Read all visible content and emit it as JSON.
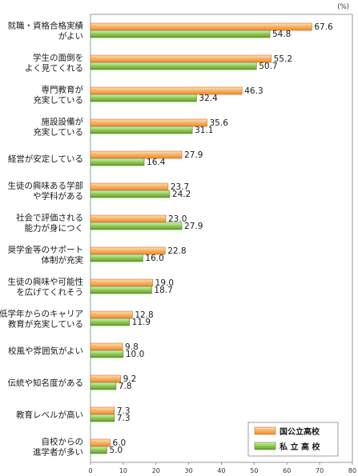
{
  "chart_data": {
    "type": "bar",
    "orientation": "horizontal",
    "unit": "(%)",
    "categories": [
      [
        "就職・資格合格実績",
        "がよい"
      ],
      [
        "学生の面倒を",
        "よく見てくれる"
      ],
      [
        "専門教育が",
        "充実している"
      ],
      [
        "施設設備が",
        "充実している"
      ],
      [
        "経営が安定している"
      ],
      [
        "生徒の興味ある学部",
        "や学科がある"
      ],
      [
        "社会で評価される",
        "能力が身につく"
      ],
      [
        "奨学金等のサポート",
        "体制が充実"
      ],
      [
        "生徒の興味や可能性",
        "を広げてくれそう"
      ],
      [
        "低学年からのキャリア",
        "教育が充実している"
      ],
      [
        "校風や雰囲気がよい"
      ],
      [
        "伝統や知名度がある"
      ],
      [
        "教育レベルが高い"
      ],
      [
        "自校からの",
        "進学者が多い"
      ]
    ],
    "series": [
      {
        "name": "国公立高校",
        "color": "#f7a14a",
        "values": [
          67.6,
          55.2,
          46.3,
          35.6,
          27.9,
          23.7,
          23.0,
          22.8,
          19.0,
          12.8,
          9.8,
          9.2,
          7.3,
          6.0
        ]
      },
      {
        "name": "私 立 高 校",
        "color": "#86c34a",
        "values": [
          54.8,
          50.7,
          32.4,
          31.1,
          16.4,
          24.2,
          27.9,
          16.0,
          18.7,
          11.9,
          10.0,
          7.8,
          7.3,
          5.0
        ]
      }
    ],
    "xlim": [
      0,
      80
    ],
    "xticks": [
      0,
      10,
      20,
      30,
      40,
      50,
      60,
      70,
      80
    ],
    "legend": "bottom-right",
    "grid": false
  }
}
